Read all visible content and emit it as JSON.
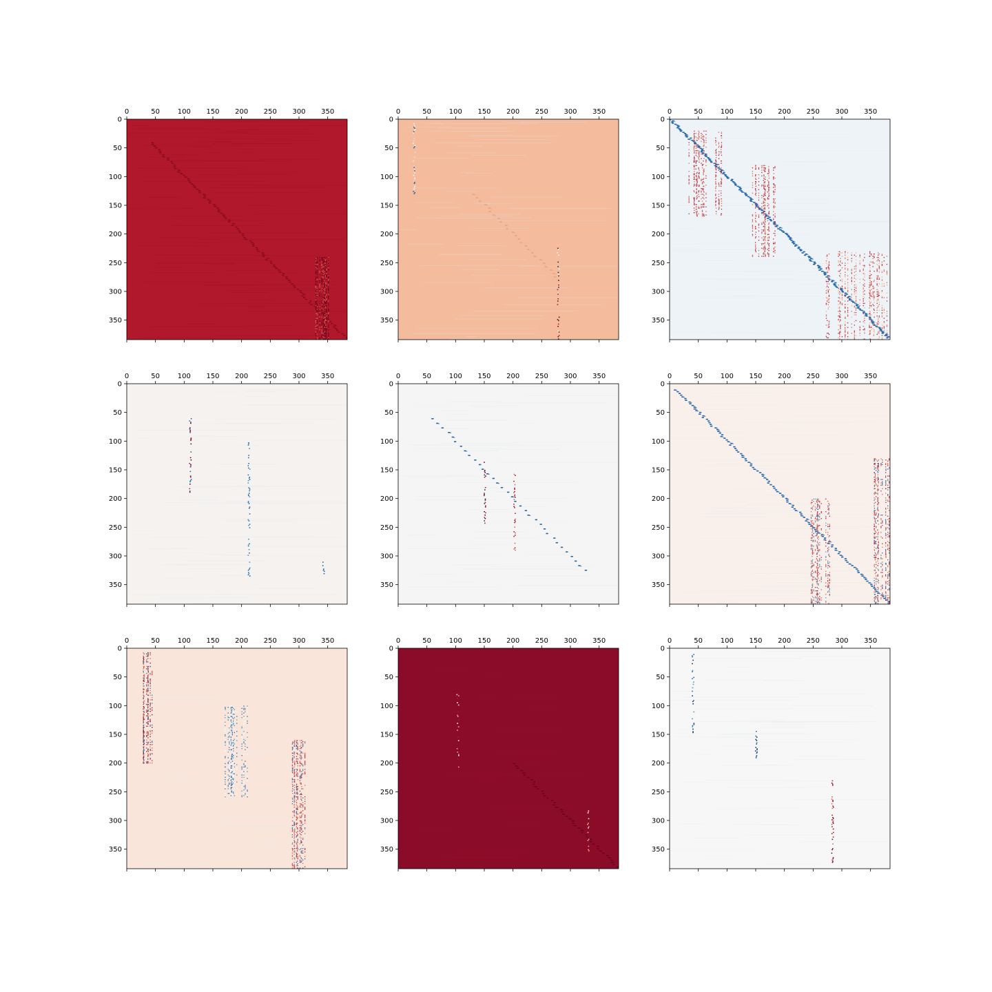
{
  "figure": {
    "background": "#ffffff",
    "layout": "3x3 grid of matshow heatmaps"
  },
  "chart_data": [
    {
      "type": "heatmap",
      "matrix_size": 384,
      "colormap": "RdBu_r",
      "x_ticks": [
        "0",
        "50",
        "100",
        "150",
        "200",
        "250",
        "300",
        "350"
      ],
      "y_ticks": [
        "0",
        "50",
        "100",
        "150",
        "200",
        "250",
        "300",
        "350"
      ],
      "x_axis_position": "top",
      "base_color": "#b2182b",
      "pattern": "dense-red",
      "features": [
        {
          "kind": "diag",
          "color": "#8a0a1e",
          "from": 40,
          "to": 384,
          "step": 3
        },
        {
          "kind": "block",
          "x": [
            325,
            360
          ],
          "y": [
            240,
            384
          ],
          "colors": [
            "#67001f",
            "#d6604d",
            "#7a0c1f"
          ]
        }
      ]
    },
    {
      "type": "heatmap",
      "matrix_size": 384,
      "colormap": "RdBu_r",
      "x_ticks": [
        "0",
        "50",
        "100",
        "150",
        "200",
        "250",
        "300",
        "350"
      ],
      "y_ticks": [
        "0",
        "50",
        "100",
        "150",
        "200",
        "250",
        "300",
        "350"
      ],
      "x_axis_position": "top",
      "base_color": "#f4bb9c",
      "pattern": "light-orange",
      "features": [
        {
          "kind": "vline",
          "x": 27,
          "y": [
            5,
            130
          ],
          "colors": [
            "#fddbc7",
            "#ffffff",
            "#2166ac"
          ]
        },
        {
          "kind": "vline",
          "x": 278,
          "y": [
            220,
            384
          ],
          "colors": [
            "#b2182b",
            "#67001f",
            "#ffffff",
            "#053061"
          ]
        },
        {
          "kind": "diag",
          "color": "#e8a283",
          "from": 130,
          "to": 280,
          "step": 6
        }
      ]
    },
    {
      "type": "heatmap",
      "matrix_size": 384,
      "colormap": "RdBu_r",
      "x_ticks": [
        "0",
        "50",
        "100",
        "150",
        "200",
        "250",
        "300",
        "350"
      ],
      "y_ticks": [
        "0",
        "50",
        "100",
        "150",
        "200",
        "250",
        "300",
        "350"
      ],
      "x_axis_position": "top",
      "base_color": "#eef3f7",
      "pattern": "diagonal-band",
      "features": [
        {
          "kind": "diag",
          "color": "#2166ac",
          "from": 0,
          "to": 384,
          "step": 2
        },
        {
          "kind": "vband",
          "x": [
            30,
            90
          ],
          "y": [
            20,
            170
          ],
          "colors": [
            "#d6604d",
            "#b2182b"
          ]
        },
        {
          "kind": "vband",
          "x": [
            140,
            185
          ],
          "y": [
            80,
            240
          ],
          "colors": [
            "#d6604d",
            "#b2182b"
          ]
        },
        {
          "kind": "vband",
          "x": [
            270,
            384
          ],
          "y": [
            230,
            384
          ],
          "colors": [
            "#d6604d",
            "#b2182b",
            "#f4a582"
          ]
        }
      ]
    },
    {
      "type": "heatmap",
      "matrix_size": 384,
      "colormap": "RdBu_r",
      "x_ticks": [
        "0",
        "50",
        "100",
        "150",
        "200",
        "250",
        "300",
        "350"
      ],
      "y_ticks": [
        "0",
        "50",
        "100",
        "150",
        "200",
        "250",
        "300",
        "350"
      ],
      "x_axis_position": "top",
      "base_color": "#f6f2f0",
      "pattern": "sparse",
      "features": [
        {
          "kind": "vline",
          "x": 110,
          "y": [
            50,
            190
          ],
          "colors": [
            "#b2182b",
            "#2166ac",
            "#67001f"
          ]
        },
        {
          "kind": "vline",
          "x": 212,
          "y": [
            100,
            340
          ],
          "colors": [
            "#2166ac",
            "#4393c3"
          ]
        },
        {
          "kind": "vline",
          "x": 342,
          "y": [
            310,
            340
          ],
          "colors": [
            "#2166ac"
          ]
        }
      ]
    },
    {
      "type": "heatmap",
      "matrix_size": 384,
      "colormap": "RdBu_r",
      "x_ticks": [
        "0",
        "50",
        "100",
        "150",
        "200",
        "250",
        "300",
        "350"
      ],
      "y_ticks": [
        "0",
        "50",
        "100",
        "150",
        "200",
        "250",
        "300",
        "350"
      ],
      "x_axis_position": "top",
      "base_color": "#f5f5f5",
      "pattern": "diagonal-sparse",
      "features": [
        {
          "kind": "diag",
          "color": "#2166ac",
          "from": 60,
          "to": 330,
          "step": 8
        },
        {
          "kind": "vline",
          "x": 150,
          "y": [
            130,
            245
          ],
          "colors": [
            "#b2182b",
            "#67001f",
            "#053061"
          ]
        },
        {
          "kind": "vline",
          "x": 202,
          "y": [
            155,
            290
          ],
          "colors": [
            "#b2182b",
            "#d6604d"
          ]
        }
      ]
    },
    {
      "type": "heatmap",
      "matrix_size": 384,
      "colormap": "RdBu_r",
      "x_ticks": [
        "0",
        "50",
        "100",
        "150",
        "200",
        "250",
        "300",
        "350"
      ],
      "y_ticks": [
        "0",
        "50",
        "100",
        "150",
        "200",
        "250",
        "300",
        "350"
      ],
      "x_axis_position": "top",
      "base_color": "#f9f0eb",
      "pattern": "diagonal-band",
      "features": [
        {
          "kind": "diag",
          "color": "#2166ac",
          "from": 10,
          "to": 384,
          "step": 3
        },
        {
          "kind": "vband",
          "x": [
            245,
            285
          ],
          "y": [
            200,
            384
          ],
          "colors": [
            "#b2182b",
            "#d6604d",
            "#4393c3"
          ]
        },
        {
          "kind": "vband",
          "x": [
            355,
            384
          ],
          "y": [
            130,
            384
          ],
          "colors": [
            "#b2182b",
            "#d6604d",
            "#2166ac"
          ]
        }
      ]
    },
    {
      "type": "heatmap",
      "matrix_size": 384,
      "colormap": "RdBu_r",
      "x_ticks": [
        "0",
        "50",
        "100",
        "150",
        "200",
        "250",
        "300",
        "350"
      ],
      "y_ticks": [
        "0",
        "50",
        "100",
        "150",
        "200",
        "250",
        "300",
        "350"
      ],
      "x_axis_position": "top",
      "base_color": "#fae5da",
      "pattern": "light-orange",
      "features": [
        {
          "kind": "vband",
          "x": [
            28,
            48
          ],
          "y": [
            5,
            200
          ],
          "colors": [
            "#b2182b",
            "#67001f",
            "#2166ac",
            "#d6604d"
          ]
        },
        {
          "kind": "vband",
          "x": [
            170,
            215
          ],
          "y": [
            100,
            260
          ],
          "colors": [
            "#2166ac",
            "#ffffff",
            "#4393c3"
          ]
        },
        {
          "kind": "vband",
          "x": [
            285,
            310
          ],
          "y": [
            160,
            384
          ],
          "colors": [
            "#b2182b",
            "#2166ac",
            "#d6604d"
          ]
        }
      ]
    },
    {
      "type": "heatmap",
      "matrix_size": 384,
      "colormap": "RdBu_r",
      "x_ticks": [
        "0",
        "50",
        "100",
        "150",
        "200",
        "250",
        "300",
        "350"
      ],
      "y_ticks": [
        "0",
        "50",
        "100",
        "150",
        "200",
        "250",
        "300",
        "350"
      ],
      "x_axis_position": "top",
      "base_color": "#8a0c29",
      "pattern": "dense-red",
      "features": [
        {
          "kind": "diag",
          "color": "#6b0020",
          "from": 200,
          "to": 384,
          "step": 4
        },
        {
          "kind": "vline",
          "x": 103,
          "y": [
            80,
            210
          ],
          "colors": [
            "#ffffff",
            "#f4a582",
            "#b2182b"
          ]
        },
        {
          "kind": "vline",
          "x": 330,
          "y": [
            280,
            360
          ],
          "colors": [
            "#ffffff",
            "#f4a582"
          ]
        }
      ]
    },
    {
      "type": "heatmap",
      "matrix_size": 384,
      "colormap": "RdBu_r",
      "x_ticks": [
        "0",
        "50",
        "100",
        "150",
        "200",
        "250",
        "300",
        "350"
      ],
      "y_ticks": [
        "0",
        "50",
        "100",
        "150",
        "200",
        "250",
        "300",
        "350"
      ],
      "x_axis_position": "top",
      "base_color": "#f7f7f7",
      "pattern": "sparse",
      "features": [
        {
          "kind": "vline",
          "x": 40,
          "y": [
            10,
            150
          ],
          "colors": [
            "#2166ac",
            "#4393c3",
            "#053061"
          ]
        },
        {
          "kind": "vline",
          "x": 150,
          "y": [
            140,
            200
          ],
          "colors": [
            "#2166ac",
            "#053061"
          ]
        },
        {
          "kind": "vline",
          "x": 283,
          "y": [
            230,
            375
          ],
          "colors": [
            "#b2182b",
            "#67001f",
            "#d6604d"
          ]
        }
      ]
    }
  ]
}
